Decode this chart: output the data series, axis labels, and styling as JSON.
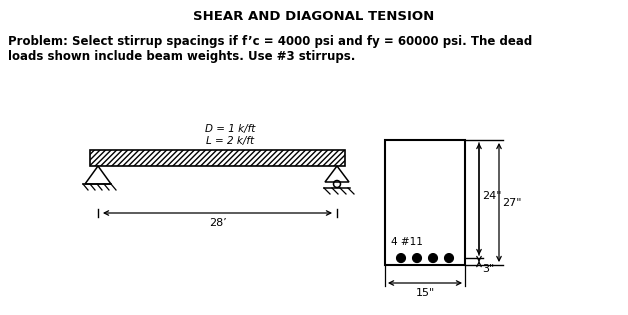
{
  "title": "SHEAR AND DIAGONAL TENSION",
  "problem_line1": "Problem: Select stirrup spacings if f’c = 4000 psi and fy = 60000 psi. The dead",
  "problem_line2": "loads shown include beam weights. Use #3 stirrups.",
  "D_label": "D = 1 k/ft",
  "L_label": "L = 2 k/ft",
  "span_label": "28’",
  "dim_24": "24\"",
  "dim_27": "27\"",
  "dim_15": "15\"",
  "dim_3": "3\"",
  "bar_label": "4 #11",
  "bg_color": "#ffffff"
}
